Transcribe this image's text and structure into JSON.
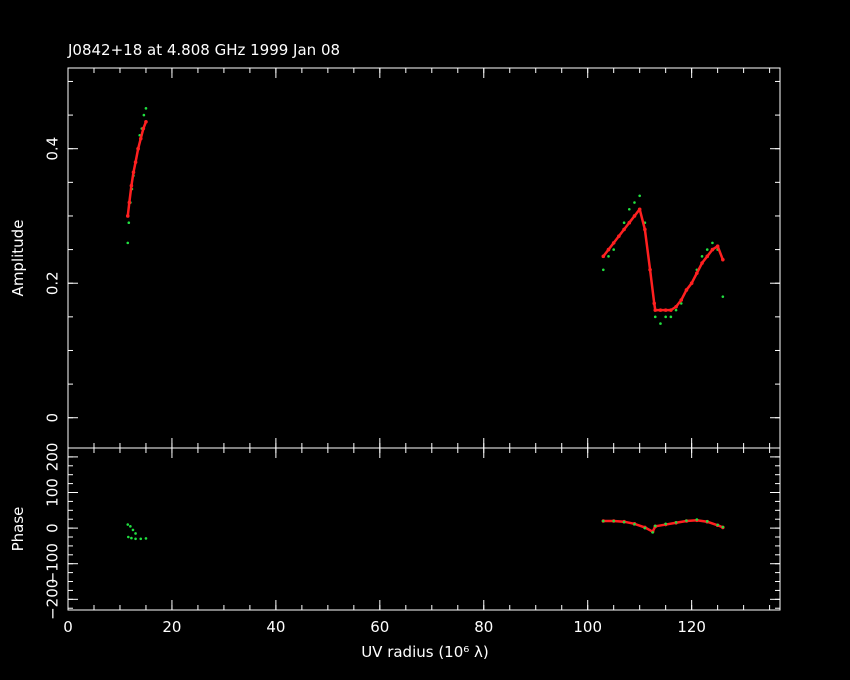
{
  "title": "J0842+18 at 4.808 GHz 1999 Jan 08",
  "colors": {
    "background": "#000000",
    "axes": "#ffffff",
    "model": "#ff2020",
    "data": "#20e040"
  },
  "chart_data": [
    {
      "type": "scatter",
      "panel": "amplitude",
      "ylabel": "Amplitude",
      "xlim": [
        0,
        137
      ],
      "ylim": [
        -0.045,
        0.52
      ],
      "y_ticks": [
        0,
        0.2,
        0.4
      ],
      "y_tick_labels": [
        "0",
        "0.2",
        "0.4"
      ],
      "series": [
        {
          "role": "data",
          "color": "#20e040",
          "x": [
            11.5,
            11.7,
            12.0,
            12.3,
            12.6,
            13.0,
            13.4,
            13.8,
            14.2,
            14.6,
            15.0
          ],
          "y": [
            0.26,
            0.29,
            0.32,
            0.34,
            0.36,
            0.38,
            0.4,
            0.42,
            0.43,
            0.45,
            0.46
          ]
        },
        {
          "role": "model",
          "color": "#ff2020",
          "x": [
            11.5,
            11.8,
            12.2,
            12.6,
            13.0,
            13.5,
            14.0,
            14.5,
            15.0
          ],
          "y": [
            0.3,
            0.32,
            0.345,
            0.365,
            0.38,
            0.4,
            0.415,
            0.43,
            0.44
          ]
        },
        {
          "role": "data",
          "color": "#20e040",
          "x": [
            103,
            104,
            105,
            106,
            107,
            108,
            109,
            110,
            111,
            112,
            113,
            114,
            115,
            116,
            117,
            118,
            119,
            120,
            121,
            122,
            123,
            124,
            125,
            126
          ],
          "y": [
            0.22,
            0.24,
            0.25,
            0.27,
            0.29,
            0.31,
            0.32,
            0.33,
            0.29,
            0.22,
            0.15,
            0.14,
            0.15,
            0.15,
            0.16,
            0.17,
            0.19,
            0.2,
            0.22,
            0.24,
            0.25,
            0.26,
            0.25,
            0.18
          ]
        },
        {
          "role": "model",
          "color": "#ff2020",
          "x": [
            103,
            104,
            105,
            106,
            107,
            108,
            109,
            110,
            111,
            112,
            112.8,
            113,
            114,
            115,
            116,
            117,
            118,
            119,
            120,
            121,
            122,
            123,
            124,
            125,
            126
          ],
          "y": [
            0.24,
            0.25,
            0.26,
            0.27,
            0.28,
            0.29,
            0.3,
            0.31,
            0.28,
            0.22,
            0.17,
            0.16,
            0.16,
            0.16,
            0.16,
            0.165,
            0.175,
            0.19,
            0.2,
            0.215,
            0.23,
            0.24,
            0.25,
            0.255,
            0.235
          ]
        }
      ]
    },
    {
      "type": "scatter",
      "panel": "phase",
      "xlabel": "UV radius  (10⁶ λ)",
      "ylabel": "Phase",
      "xlim": [
        0,
        137
      ],
      "ylim": [
        -230,
        225
      ],
      "x_ticks": [
        0,
        20,
        40,
        60,
        80,
        100,
        120
      ],
      "x_tick_labels": [
        "0",
        "20",
        "40",
        "60",
        "80",
        "100",
        "120"
      ],
      "y_ticks": [
        -200,
        -100,
        0,
        100,
        200
      ],
      "y_tick_labels": [
        "−200",
        "−100",
        "0",
        "100",
        "200"
      ],
      "series": [
        {
          "role": "data",
          "color": "#20e040",
          "x": [
            11.5,
            12.0,
            12.5,
            13.0,
            11.6,
            12.2,
            13.0,
            14.0,
            15.0
          ],
          "y": [
            10,
            5,
            -5,
            -15,
            -25,
            -28,
            -30,
            -30,
            -29
          ]
        },
        {
          "role": "model",
          "color": "#ff2020",
          "x": [
            103,
            105,
            107,
            109,
            111,
            112.5,
            113,
            115,
            117,
            119,
            121,
            123,
            125,
            126
          ],
          "y": [
            20,
            20,
            18,
            12,
            2,
            -10,
            5,
            10,
            15,
            20,
            22,
            18,
            8,
            2
          ]
        },
        {
          "role": "data",
          "color": "#20e040",
          "x": [
            103,
            105,
            107,
            109,
            111,
            112.5,
            113,
            115,
            117,
            119,
            121,
            123,
            125,
            126
          ],
          "y": [
            20,
            20,
            17,
            11,
            0,
            -12,
            6,
            12,
            16,
            21,
            24,
            19,
            9,
            3
          ]
        }
      ]
    }
  ]
}
